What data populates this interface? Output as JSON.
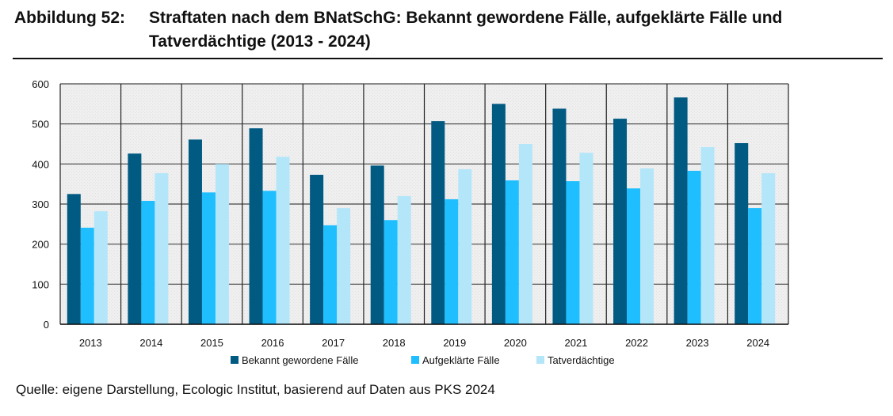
{
  "figure_number": "Abbildung 52:",
  "source": "Quelle: eigene Darstellung, Ecologic Institut, basierend auf Daten aus PKS 2024",
  "chart_data": {
    "type": "bar",
    "title": "Straftaten nach dem BNatSchG: Bekannt gewordene Fälle, aufgeklärte Fälle und Tatverdächtige (2013 - 2024)",
    "xlabel": "",
    "ylabel": "",
    "ylim": [
      0,
      600
    ],
    "yticks": [
      0,
      100,
      200,
      300,
      400,
      500,
      600
    ],
    "grid": true,
    "legend_position": "bottom",
    "categories": [
      "2013",
      "2014",
      "2015",
      "2016",
      "2017",
      "2018",
      "2019",
      "2020",
      "2021",
      "2022",
      "2023",
      "2024"
    ],
    "series": [
      {
        "name": "Bekannt gewordene Fälle",
        "color": "#005a82",
        "values": [
          325,
          426,
          461,
          489,
          373,
          396,
          507,
          550,
          538,
          513,
          566,
          452
        ]
      },
      {
        "name": "Aufgeklärte Fälle",
        "color": "#1ebeff",
        "values": [
          241,
          308,
          329,
          333,
          247,
          260,
          312,
          359,
          357,
          339,
          383,
          290
        ]
      },
      {
        "name": "Tatverdächtige",
        "color": "#b4e6fa",
        "values": [
          282,
          377,
          400,
          418,
          290,
          320,
          387,
          450,
          428,
          389,
          442,
          377
        ]
      }
    ]
  }
}
